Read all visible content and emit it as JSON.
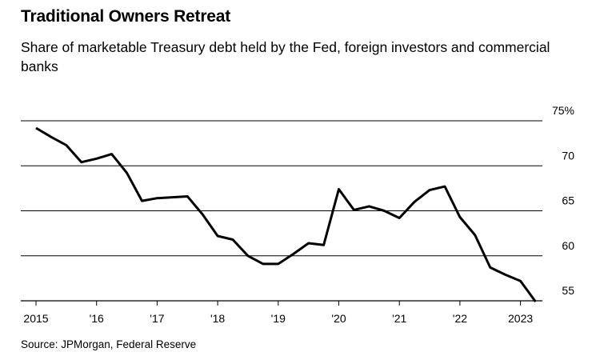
{
  "title": "Traditional Owners Retreat",
  "subtitle": "Share of marketable Treasury debt held by the Fed, foreign investors and commercial banks",
  "source": "Source: JPMorgan, Federal Reserve",
  "chart_data": {
    "type": "line",
    "title": "Traditional Owners Retreat",
    "subtitle": "Share of marketable Treasury debt held by the Fed, foreign investors and commercial banks",
    "xlabel": "",
    "ylabel": "",
    "ylim": [
      54.5,
      75
    ],
    "grid": true,
    "x_ticks": [
      {
        "value": 2015,
        "label": "2015"
      },
      {
        "value": 2016,
        "label": "'16"
      },
      {
        "value": 2017,
        "label": "'17"
      },
      {
        "value": 2018,
        "label": "'18"
      },
      {
        "value": 2019,
        "label": "'19"
      },
      {
        "value": 2020,
        "label": "'20"
      },
      {
        "value": 2021,
        "label": "'21"
      },
      {
        "value": 2022,
        "label": "'22"
      },
      {
        "value": 2023,
        "label": "2023"
      }
    ],
    "y_ticks": [
      {
        "value": 75,
        "label": "75%"
      },
      {
        "value": 70,
        "label": "70"
      },
      {
        "value": 65,
        "label": "65"
      },
      {
        "value": 60,
        "label": "60"
      },
      {
        "value": 55,
        "label": "55"
      }
    ],
    "series": [
      {
        "name": "",
        "color": "#000000",
        "points": [
          [
            2015.0,
            74.2
          ],
          [
            2015.25,
            73.2
          ],
          [
            2015.5,
            72.3
          ],
          [
            2015.75,
            70.4
          ],
          [
            2016.0,
            70.8
          ],
          [
            2016.25,
            71.3
          ],
          [
            2016.5,
            69.2
          ],
          [
            2016.75,
            66.1
          ],
          [
            2017.0,
            66.4
          ],
          [
            2017.25,
            66.5
          ],
          [
            2017.5,
            66.6
          ],
          [
            2017.75,
            64.6
          ],
          [
            2018.0,
            62.2
          ],
          [
            2018.25,
            61.8
          ],
          [
            2018.5,
            60.0
          ],
          [
            2018.75,
            59.1
          ],
          [
            2019.0,
            59.1
          ],
          [
            2019.25,
            60.2
          ],
          [
            2019.5,
            61.4
          ],
          [
            2019.75,
            61.2
          ],
          [
            2020.0,
            67.4
          ],
          [
            2020.25,
            65.1
          ],
          [
            2020.5,
            65.5
          ],
          [
            2020.75,
            65.0
          ],
          [
            2021.0,
            64.2
          ],
          [
            2021.25,
            66.0
          ],
          [
            2021.5,
            67.3
          ],
          [
            2021.75,
            67.7
          ],
          [
            2022.0,
            64.3
          ],
          [
            2022.25,
            62.3
          ],
          [
            2022.5,
            58.7
          ],
          [
            2022.75,
            57.9
          ],
          [
            2023.0,
            57.2
          ],
          [
            2023.25,
            54.9
          ]
        ]
      }
    ]
  }
}
